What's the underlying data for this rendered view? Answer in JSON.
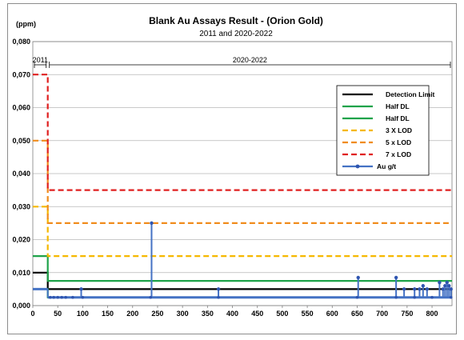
{
  "chart_data": {
    "type": "line",
    "title": "Blank Au Assays Result -  (Orion Gold)",
    "subtitle": "2011 and 2020-2022",
    "ylabel": "(ppm)",
    "xlabel": "",
    "xlim": [
      0,
      840
    ],
    "ylim": [
      0,
      0.08
    ],
    "x_ticks": [
      0,
      50,
      100,
      150,
      200,
      250,
      300,
      350,
      400,
      450,
      500,
      550,
      600,
      650,
      700,
      750,
      800
    ],
    "y_ticks": [
      0,
      0.01,
      0.02,
      0.03,
      0.04,
      0.05,
      0.06,
      0.07,
      0.08
    ],
    "y_tick_labels": [
      "0,000",
      "0,010",
      "0,020",
      "0,030",
      "0,040",
      "0,050",
      "0,060",
      "0,070",
      "0,080"
    ],
    "grid": "horizontal",
    "legend_position": "right",
    "periods": [
      {
        "label": "2011",
        "x_start": 0,
        "x_end": 30
      },
      {
        "label": "2020-2022",
        "x_start": 30,
        "x_end": 840
      }
    ],
    "series": [
      {
        "name": "Detection Limit",
        "color": "#000000",
        "style": "solid",
        "points": [
          [
            0,
            0.01
          ],
          [
            30,
            0.01
          ],
          [
            30,
            0.005
          ],
          [
            840,
            0.005
          ]
        ]
      },
      {
        "name": "Half DL",
        "color": "#1fa34a",
        "style": "solid",
        "points": [
          [
            0,
            0.015
          ],
          [
            30,
            0.015
          ],
          [
            30,
            0.0075
          ],
          [
            840,
            0.0075
          ]
        ]
      },
      {
        "name": "Half DL",
        "color": "#1fa34a",
        "style": "solid",
        "points": [
          [
            0,
            0.005
          ],
          [
            30,
            0.005
          ],
          [
            30,
            0.0025
          ],
          [
            840,
            0.0025
          ]
        ]
      },
      {
        "name": "3 X LOD",
        "color": "#f5b800",
        "style": "dashed",
        "points": [
          [
            0,
            0.03
          ],
          [
            30,
            0.03
          ],
          [
            30,
            0.015
          ],
          [
            840,
            0.015
          ]
        ]
      },
      {
        "name": "5 x LOD",
        "color": "#f08c1c",
        "style": "dashed",
        "points": [
          [
            0,
            0.05
          ],
          [
            30,
            0.05
          ],
          [
            30,
            0.025
          ],
          [
            840,
            0.025
          ]
        ]
      },
      {
        "name": "7 x LOD",
        "color": "#e02020",
        "style": "dashed",
        "points": [
          [
            0,
            0.07
          ],
          [
            30,
            0.07
          ],
          [
            30,
            0.035
          ],
          [
            840,
            0.035
          ]
        ]
      },
      {
        "name": "Au g/t",
        "color": "#4472c4",
        "style": "solid-markers",
        "baseline": 0.0025,
        "baseline_x": [
          0,
          840
        ],
        "baseline_2011": 0.005,
        "spikes": [
          {
            "x": 97,
            "y": 0.005
          },
          {
            "x": 238,
            "y": 0.025
          },
          {
            "x": 372,
            "y": 0.005
          },
          {
            "x": 652,
            "y": 0.0085
          },
          {
            "x": 728,
            "y": 0.0085
          },
          {
            "x": 744,
            "y": 0.005
          },
          {
            "x": 765,
            "y": 0.005
          },
          {
            "x": 775,
            "y": 0.005
          },
          {
            "x": 782,
            "y": 0.006
          },
          {
            "x": 790,
            "y": 0.005
          },
          {
            "x": 815,
            "y": 0.007
          },
          {
            "x": 822,
            "y": 0.005
          },
          {
            "x": 826,
            "y": 0.006
          },
          {
            "x": 830,
            "y": 0.007
          },
          {
            "x": 834,
            "y": 0.006
          },
          {
            "x": 838,
            "y": 0.005
          }
        ],
        "baseline_markers_x": [
          35,
          42,
          50,
          58,
          66,
          80,
          100,
          236,
          372,
          650,
          728,
          765,
          800,
          838
        ]
      }
    ]
  }
}
